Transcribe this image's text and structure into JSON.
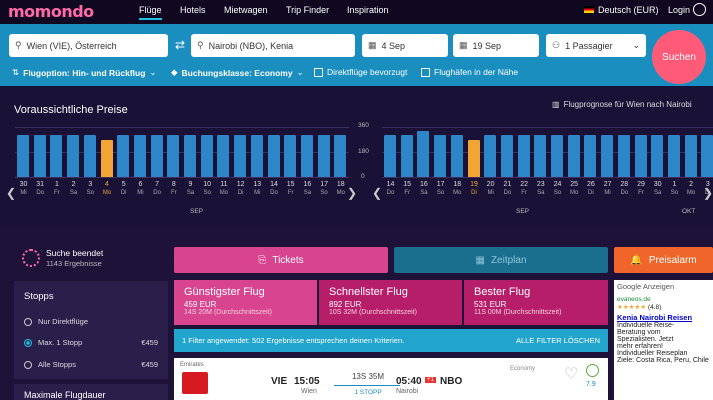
{
  "nav": {
    "logo": "momondo",
    "items": [
      "Flüge",
      "Hotels",
      "Mietwagen",
      "Trip Finder",
      "Inspiration"
    ],
    "language": "Deutsch (EUR)",
    "login": "Login"
  },
  "search": {
    "from": "Wien (VIE), Österreich",
    "to": "Nairobi (NBO), Kenia",
    "depart": "4 Sep",
    "return": "19 Sep",
    "passengers": "1 Passagier",
    "submit": "Suchen",
    "opt_flight": "Flugoption: Hin- und Rückflug",
    "opt_class": "Buchungsklasse: Economy",
    "opt_direct": "Direktflüge bevorzugt",
    "opt_nearby": "Flughäfen in der Nähe"
  },
  "prices": {
    "title": "Voraussichtliche Preise",
    "forecast": "Flugprognose für Wien nach Nairobi",
    "axis": [
      "360",
      "180",
      "0"
    ],
    "out": {
      "days": [
        [
          "30",
          "Mi"
        ],
        [
          "31",
          "Do"
        ],
        [
          "1",
          "Fr"
        ],
        [
          "2",
          "Sa"
        ],
        [
          "3",
          "So"
        ],
        [
          "4",
          "Mo"
        ],
        [
          "5",
          "Di"
        ],
        [
          "6",
          "Mi"
        ],
        [
          "7",
          "Do"
        ],
        [
          "8",
          "Fr"
        ],
        [
          "9",
          "Sa"
        ],
        [
          "10",
          "So"
        ],
        [
          "11",
          "Mo"
        ],
        [
          "12",
          "Di"
        ],
        [
          "13",
          "Mi"
        ],
        [
          "14",
          "Do"
        ],
        [
          "15",
          "Fr"
        ],
        [
          "16",
          "Sa"
        ],
        [
          "17",
          "So"
        ],
        [
          "18",
          "Mo"
        ]
      ],
      "values": [
        300,
        300,
        300,
        300,
        300,
        270,
        300,
        300,
        300,
        300,
        300,
        300,
        300,
        300,
        300,
        300,
        300,
        300,
        300,
        300
      ],
      "selected": 5,
      "month": "SEP"
    },
    "ret": {
      "days": [
        [
          "14",
          "Do"
        ],
        [
          "15",
          "Fr"
        ],
        [
          "16",
          "Sa"
        ],
        [
          "17",
          "So"
        ],
        [
          "18",
          "Mo"
        ],
        [
          "19",
          "Di"
        ],
        [
          "20",
          "Mi"
        ],
        [
          "21",
          "Do"
        ],
        [
          "22",
          "Fr"
        ],
        [
          "23",
          "Sa"
        ],
        [
          "24",
          "So"
        ],
        [
          "25",
          "Mo"
        ],
        [
          "26",
          "Di"
        ],
        [
          "27",
          "Mi"
        ],
        [
          "28",
          "Do"
        ],
        [
          "29",
          "Fr"
        ],
        [
          "30",
          "Sa"
        ],
        [
          "1",
          "So"
        ],
        [
          "2",
          "Mo"
        ],
        [
          "3",
          "Di"
        ]
      ],
      "values": [
        300,
        300,
        330,
        300,
        300,
        270,
        300,
        300,
        300,
        300,
        300,
        300,
        300,
        300,
        300,
        300,
        300,
        300,
        300,
        300
      ],
      "selected": 5,
      "month": "SEP",
      "month2": "OKT"
    }
  },
  "status": {
    "title": "Suche beendet",
    "count": "1143 Ergebnisse"
  },
  "filters": {
    "title": "Stopps",
    "rows": [
      {
        "label": "Nur Direktflüge",
        "price": "",
        "on": false
      },
      {
        "label": "Max. 1 Stopp",
        "price": "€459",
        "on": true
      },
      {
        "label": "Alle Stopps",
        "price": "€459",
        "on": false
      }
    ],
    "next": "Maximale Flugdauer"
  },
  "tabs": {
    "tickets": "Tickets",
    "zeitplan": "Zeitplan",
    "alarm": "Preisalarm"
  },
  "cards": [
    {
      "title": "Günstigster Flug",
      "price": "459 EUR",
      "sub": "14S 20M (Durchschnittszeit)"
    },
    {
      "title": "Schnellster Flug",
      "price": "892 EUR",
      "sub": "10S 32M (Durchschnittszeit)"
    },
    {
      "title": "Bester Flug",
      "price": "531 EUR",
      "sub": "11S 00M (Durchschnittszeit)"
    }
  ],
  "infobar": {
    "text": "1 Filter angewendet: 502 Ergebnisse entsprechen deinen Kriterien.",
    "clear": "ALLE FILTER LÖSCHEN"
  },
  "result": {
    "airline": "Emirates",
    "from": "VIE",
    "dep": "15:05",
    "from_city": "Wien",
    "duration": "13S 35M",
    "stops": "1 STOPP",
    "arr": "05:40",
    "plus": "+1",
    "to": "NBO",
    "to_city": "Nairobi",
    "class": "Economy",
    "score": "7.9"
  },
  "ad": {
    "header": "Google Anzeigen",
    "domain": "evaneos.de",
    "rating": "(4.8)",
    "title": "Kenia Nairobi Reisen",
    "l1": "Individuelle Reise-",
    "l2": "Beratung vom",
    "l3": "Spezialisten. Jetzt",
    "l4": "mehr erfahren!",
    "l5": "Individueller Reiseplan",
    "l6": "Ziele: Costa Rica, Peru, Chile"
  },
  "colors": {
    "accent": "#21c1e6",
    "brand": "#ff5a78",
    "selected": "#f3a533",
    "bar": "#2d86c7"
  }
}
